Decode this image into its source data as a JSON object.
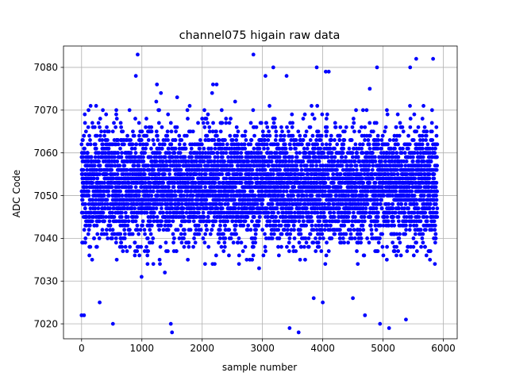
{
  "chart_data": {
    "type": "scatter",
    "title": "channel075 higain raw data",
    "xlabel": "sample number",
    "ylabel": "ADC Code",
    "xlim": [
      -300,
      6230
    ],
    "ylim": [
      7016.5,
      7085
    ],
    "xticks": [
      0,
      1000,
      2000,
      3000,
      4000,
      5000,
      6000
    ],
    "yticks": [
      7020,
      7030,
      7040,
      7050,
      7060,
      7070,
      7080
    ],
    "xtick_labels": [
      "0",
      "1000",
      "2000",
      "3000",
      "4000",
      "5000",
      "6000"
    ],
    "ytick_labels": [
      "7020",
      "7030",
      "7040",
      "7050",
      "7060",
      "7070",
      "7080"
    ],
    "grid": true,
    "marker_color": "#0000ff",
    "n_points": 5900,
    "distribution": {
      "center": 7052.5,
      "core_low": 7035,
      "core_high": 7068,
      "min": 7018,
      "max": 7083
    },
    "series": [
      {
        "x": [
          0,
          40,
          930,
          1480,
          1500,
          1250,
          900,
          2850,
          3050,
          3180,
          3400,
          3900,
          4050,
          4100,
          4780,
          4900,
          5450,
          5550,
          5830,
          3600,
          3450,
          5100,
          4950,
          4700,
          5380,
          520,
          2240,
          2180,
          4000,
          4500,
          3850,
          300
        ],
        "y": [
          7022,
          7022,
          7083,
          7020,
          7018,
          7076,
          7078,
          7083,
          7078,
          7080,
          7078,
          7080,
          7079,
          7079,
          7075,
          7080,
          7080,
          7082,
          7082,
          7018,
          7019,
          7019,
          7020,
          7022,
          7021,
          7020,
          7076,
          7076,
          7025,
          7026,
          7026,
          7025
        ]
      }
    ]
  }
}
